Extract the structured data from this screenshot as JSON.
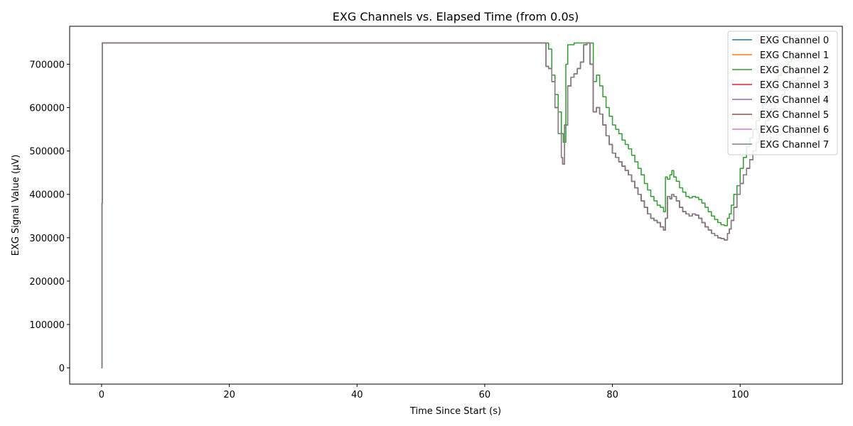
{
  "chart_data": {
    "type": "line",
    "title": "EXG Channels vs. Elapsed Time (from 0.0s)",
    "xlabel": "Time Since Start (s)",
    "ylabel": "EXG Signal Value (µV)",
    "xlim": [
      -5,
      116
    ],
    "ylim": [
      -37500,
      787500
    ],
    "x_ticks": [
      0,
      20,
      40,
      60,
      80,
      100
    ],
    "y_ticks": [
      0,
      100000,
      200000,
      300000,
      400000,
      500000,
      600000,
      700000
    ],
    "legend_position": "top-right",
    "grid": false,
    "series": [
      {
        "name": "EXG Channel 0",
        "color": "#1f77b4",
        "ref": "ch5"
      },
      {
        "name": "EXG Channel 1",
        "color": "#ff7f0e",
        "ref": "ch5"
      },
      {
        "name": "EXG Channel 2",
        "color": "#2ca02c",
        "ref": "ch2"
      },
      {
        "name": "EXG Channel 3",
        "color": "#d62728",
        "ref": "ch5"
      },
      {
        "name": "EXG Channel 4",
        "color": "#9467bd",
        "ref": "ch5"
      },
      {
        "name": "EXG Channel 5",
        "color": "#8c564b",
        "ref": "ch5"
      },
      {
        "name": "EXG Channel 6",
        "color": "#e377c2",
        "ref": "ch5"
      },
      {
        "name": "EXG Channel 7",
        "color": "#7f7f7f",
        "ref": "ch5"
      }
    ],
    "ch2": {
      "x": [
        0,
        0.05,
        0.1,
        69.5,
        70.0,
        70.5,
        71.0,
        71.5,
        72.0,
        72.3,
        72.7,
        73.0,
        74.0,
        75.0,
        76.0,
        76.5,
        77.0,
        77.5,
        78.0,
        78.5,
        79.0,
        79.5,
        80.0,
        80.5,
        81.0,
        81.5,
        82.0,
        82.5,
        83.0,
        83.5,
        84.0,
        84.5,
        85.0,
        85.5,
        86.0,
        86.5,
        87.0,
        87.5,
        88.0,
        88.3,
        88.6,
        89.0,
        89.3,
        89.6,
        90.0,
        90.5,
        91.0,
        91.5,
        92.0,
        92.5,
        93.0,
        93.5,
        94.0,
        94.5,
        95.0,
        95.5,
        96.0,
        96.5,
        97.0,
        97.5,
        98.0,
        98.3,
        98.6,
        99.0,
        99.5,
        100.0,
        100.5,
        101.0,
        101.5,
        102.0,
        102.5,
        103.0,
        103.5,
        104.0,
        104.5,
        105.0,
        105.5,
        106.0,
        106.5,
        107.0,
        107.5,
        108.0,
        108.5,
        109.0,
        110.0
      ],
      "y": [
        0,
        380000,
        749000,
        749000,
        735000,
        675000,
        630000,
        590000,
        540000,
        520000,
        700000,
        745000,
        749000,
        749000,
        749000,
        749000,
        660000,
        675000,
        650000,
        625000,
        600000,
        580000,
        560000,
        550000,
        540000,
        525000,
        515000,
        505000,
        490000,
        475000,
        460000,
        445000,
        425000,
        410000,
        395000,
        385000,
        375000,
        370000,
        360000,
        440000,
        435000,
        445000,
        455000,
        440000,
        430000,
        415000,
        405000,
        395000,
        392000,
        395000,
        393000,
        388000,
        380000,
        370000,
        360000,
        350000,
        342000,
        335000,
        330000,
        328000,
        345000,
        355000,
        375000,
        400000,
        420000,
        460000,
        485000,
        510000,
        530000,
        550000,
        570000,
        590000,
        610000,
        625000,
        640000,
        655000,
        665000,
        675000,
        688000,
        698000,
        705000,
        712000,
        718000,
        722000,
        726000
      ]
    },
    "ch5": {
      "x": [
        0,
        0.05,
        0.1,
        69.3,
        69.6,
        70.0,
        70.5,
        71.0,
        71.5,
        72.0,
        72.2,
        72.5,
        73.0,
        73.5,
        74.0,
        74.5,
        75.0,
        75.5,
        76.0,
        76.5,
        77.0,
        77.5,
        78.0,
        78.5,
        79.0,
        79.5,
        80.0,
        80.5,
        81.0,
        81.5,
        82.0,
        82.5,
        83.0,
        83.5,
        84.0,
        84.5,
        85.0,
        85.5,
        86.0,
        86.5,
        87.0,
        87.5,
        88.0,
        88.3,
        88.6,
        89.0,
        89.3,
        89.6,
        90.0,
        90.5,
        91.0,
        91.5,
        92.0,
        92.5,
        93.0,
        93.5,
        94.0,
        94.5,
        95.0,
        95.5,
        96.0,
        96.5,
        97.0,
        97.5,
        98.0,
        98.3,
        98.6,
        99.0,
        99.5,
        100.0,
        100.5,
        101.0,
        101.5,
        102.0,
        102.5,
        103.0,
        103.5,
        104.0,
        104.5,
        105.0,
        105.5,
        106.0,
        106.5,
        107.0,
        107.5,
        108.0,
        108.5,
        109.0,
        110.0
      ],
      "y": [
        0,
        380000,
        749000,
        749000,
        695000,
        690000,
        660000,
        600000,
        540000,
        485000,
        470000,
        560000,
        650000,
        670000,
        678000,
        690000,
        705000,
        745000,
        749000,
        700000,
        590000,
        600000,
        585000,
        560000,
        535000,
        515000,
        495000,
        485000,
        475000,
        465000,
        455000,
        445000,
        430000,
        415000,
        400000,
        385000,
        370000,
        355000,
        345000,
        340000,
        335000,
        325000,
        318000,
        345000,
        395000,
        390000,
        400000,
        395000,
        385000,
        370000,
        360000,
        355000,
        350000,
        355000,
        352000,
        345000,
        335000,
        325000,
        318000,
        310000,
        305000,
        300000,
        298000,
        295000,
        310000,
        320000,
        340000,
        370000,
        400000,
        425000,
        445000,
        460000,
        480000,
        500000,
        520000,
        540000,
        555000,
        570000,
        585000,
        598000,
        610000,
        620000,
        630000,
        640000,
        648000,
        655000,
        662000,
        668000,
        672000
      ]
    }
  }
}
